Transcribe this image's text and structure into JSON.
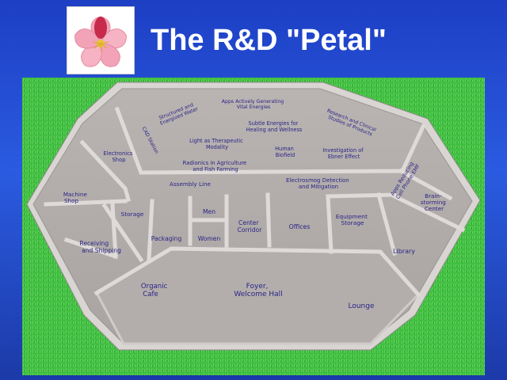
{
  "header": {
    "title": "The R&D \"Petal\"",
    "logo_icon": "cherry-blossom-icon"
  },
  "colors": {
    "background": "#2a5be0",
    "grass": "#2fb82f",
    "floor": "#b4afad",
    "wall_top": "#d8d4d2",
    "label": "#2b2486"
  },
  "rooms": {
    "apps_vital": [
      "Apps Actively Generating",
      "Vital Energies"
    ],
    "structured_water": [
      "Structured and",
      "Energized Water"
    ],
    "research_clinical": [
      "Research and Clinical",
      "Studies of Products"
    ],
    "cad_station": [
      "CAD Station"
    ],
    "subtle_energies": [
      "Subtle Energies for",
      "Healing and Wellness"
    ],
    "light_therapeutic": [
      "Light as Therapeutic",
      "Modality"
    ],
    "electronics_shop": [
      "Electronics",
      "Shop"
    ],
    "human_biofield": [
      "Human",
      "Biofield"
    ],
    "ebner_effect": [
      "Investigation of",
      "Ebner Effect"
    ],
    "radionics": [
      "Radionics in Agriculture",
      "and Fish Farming"
    ],
    "apps_emf": [
      "Apps Reducing",
      "Cell Phone EMF"
    ],
    "assembly_line": [
      "Assembly Line"
    ],
    "electrosmog": [
      "Electrosmog Detection",
      "and Mitigation"
    ],
    "machine_shop": [
      "Machine",
      "Shop"
    ],
    "brainstorming": [
      "Brain-",
      "storming",
      "Center"
    ],
    "storage": [
      "Storage"
    ],
    "men": [
      "Men"
    ],
    "center_corridor": [
      "Center",
      "Corridor"
    ],
    "offices": [
      "Offices"
    ],
    "equipment_storage": [
      "Equipment",
      "Storage"
    ],
    "packaging": [
      "Packaging"
    ],
    "women": [
      "Women"
    ],
    "receiving_shipping": [
      "Receiving",
      "and Shipping"
    ],
    "library": [
      "Library"
    ],
    "organic_cafe": [
      "Organic",
      "Cafe"
    ],
    "foyer": [
      "Foyer,",
      "Welcome Hall"
    ],
    "lounge": [
      "Lounge"
    ]
  }
}
